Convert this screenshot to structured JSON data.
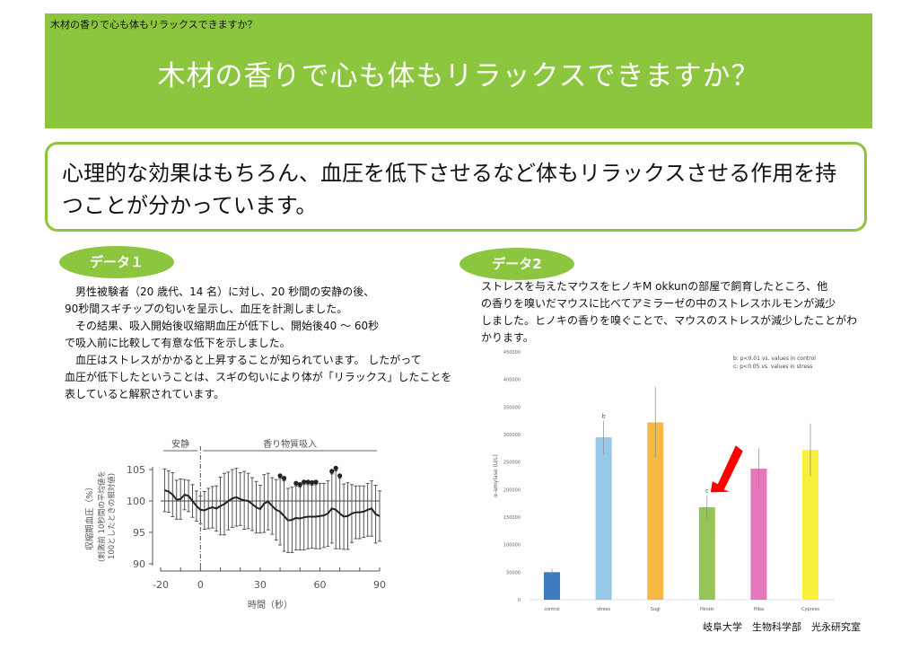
{
  "header": {
    "small_title": "木材の香りで心も体もリラックスできますか？",
    "title": "木材の香りで心も体もリラックスできますか？"
  },
  "summary": "心理的な効果はもちろん、血圧を低下させるなど体もリラックスさせる作用を持つことが分かっています。",
  "data1": {
    "label": "データ１",
    "text": "　男性被験者（20 歳代、14 名）に対し、20 秒間の安静の後、\n90秒間スギチップの匂いを呈示し、血圧を計測しました。\n　その結果、吸入開始後収縮期血圧が低下し、開始後40 ～ 60秒\nで吸入前に比較して有意な低下を示しました。\n　血圧はストレスがかかると上昇することが知られています。 したがって\n血圧が低下したということは、スギの匂いにより体が「リラックス」したことを\n表していると解釈されています。"
  },
  "data2": {
    "label": "データ2",
    "text": "ストレスを与えたマウスをヒノキM okkunの部屋で飼育したところ、他\nの香りを嗅いだマウスに比べてアミラーゼの中のストレスホルモンが減少\nしました。ヒノキの香りを嗅ぐことで、マウスのストレスが減少したことがわ\nかります。"
  },
  "credit": "岐阜大学　生物科学部　光永研究室",
  "chart_data": [
    {
      "type": "line",
      "title": "",
      "xlabel": "時間（秒）",
      "ylabel": "収縮期血圧（%）",
      "ylabel2": "(刺激前 10秒間の平均値を100としたときの相対値)",
      "phase_rest": "安静",
      "phase_inhale": "香り物質吸入",
      "xlim": [
        -20,
        90
      ],
      "ylim": [
        90,
        105
      ],
      "xticks": [
        "-20",
        "0",
        "30",
        "60",
        "90"
      ],
      "yticks": [
        "90",
        "95",
        "100",
        "105"
      ],
      "x": [
        -18,
        -16,
        -14,
        -12,
        -10,
        -8,
        -6,
        -4,
        -2,
        0,
        2,
        4,
        6,
        8,
        10,
        12,
        14,
        16,
        18,
        20,
        22,
        24,
        26,
        28,
        30,
        32,
        34,
        36,
        38,
        40,
        42,
        44,
        46,
        48,
        50,
        52,
        54,
        56,
        58,
        60,
        62,
        64,
        66,
        68,
        70,
        72,
        74,
        76,
        78,
        80,
        82,
        84,
        86,
        88,
        90
      ],
      "mean": [
        101.7,
        101.5,
        101,
        100.2,
        100.3,
        101,
        100.8,
        100,
        99.2,
        98.6,
        98.5,
        98.8,
        99,
        98.8,
        99.2,
        99.5,
        100,
        100.4,
        100.6,
        100.3,
        100.1,
        100,
        99.5,
        99,
        98.7,
        99.6,
        99.9,
        99.2,
        98.6,
        98.3,
        97.6,
        96.9,
        97,
        97.3,
        97.2,
        97.4,
        97.5,
        97.5,
        97.5,
        97.6,
        97.7,
        98,
        98.8,
        98.6,
        98,
        97.5,
        97.6,
        98,
        98.2,
        98.2,
        98.3,
        98.6,
        98.8,
        97.9,
        97.6
      ],
      "error": [
        3.4,
        3.3,
        3.5,
        3.1,
        3.2,
        2.4,
        2.5,
        2.6,
        2.4,
        2.2,
        3,
        3.2,
        3.3,
        3.6,
        4.6,
        4.9,
        4.6,
        4.6,
        4.6,
        4.2,
        4.6,
        4.4,
        4.2,
        4.1,
        3.8,
        4.6,
        4.5,
        4.5,
        4.8,
        5.3,
        5.6,
        5.1,
        5.2,
        5.1,
        5,
        5.2,
        5.1,
        5,
        5.1,
        5.2,
        5.1,
        5.2,
        5.5,
        6.2,
        5.6,
        5.2,
        5.3,
        4.6,
        4.2,
        4.2,
        4.1,
        4.2,
        4.4,
        4.6,
        4
      ],
      "significant_x": [
        40,
        42,
        48,
        50,
        52,
        54,
        56,
        58,
        66,
        68,
        70
      ],
      "reference_line": 100
    },
    {
      "type": "bar",
      "title": "",
      "xlabel": "",
      "ylabel": "α-amylase (U/L)",
      "categories": [
        "control",
        "stress",
        "Sugi",
        "Hinoki",
        "Hiba",
        "Cypress"
      ],
      "values": [
        50000,
        295000,
        322000,
        168000,
        238000,
        272000
      ],
      "error": [
        6000,
        30000,
        65000,
        22000,
        37000,
        48000
      ],
      "colors": [
        "#2e6fb7",
        "#8fc3e6",
        "#f5b335",
        "#8cc04a",
        "#e36cb4",
        "#f7ef2a"
      ],
      "annotations": [
        "",
        "b",
        "",
        "c",
        "",
        ""
      ],
      "legend": [
        "b: p<0.01 vs. values in control",
        "c: p<0.05 vs. values in stress"
      ],
      "ylim": [
        0,
        450000
      ],
      "yticks": [
        "0",
        "50000",
        "100000",
        "150000",
        "200000",
        "250000",
        "300000",
        "350000",
        "400000",
        "450000"
      ],
      "highlight": "Hinoki"
    }
  ]
}
